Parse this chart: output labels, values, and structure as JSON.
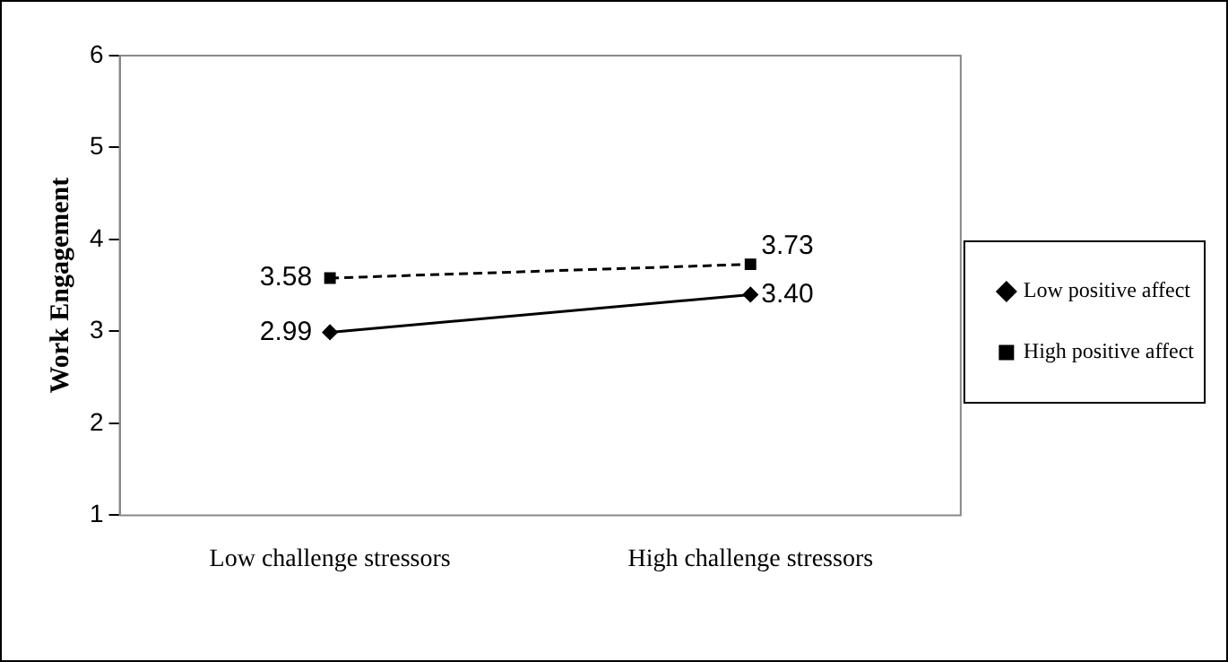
{
  "chart_data": {
    "type": "line",
    "ylabel": "Work Engagement",
    "categories": [
      "Low challenge stressors",
      "High challenge stressors"
    ],
    "series": [
      {
        "name": "Low positive affect",
        "color": "#000000",
        "values": [
          2.99,
          3.4
        ],
        "value_labels": [
          "2.99",
          "3.40"
        ],
        "marker": "diamond",
        "line_style": "solid"
      },
      {
        "name": "High positive affect",
        "color": "#000000",
        "values": [
          3.58,
          3.73
        ],
        "value_labels": [
          "3.58",
          "3.73"
        ],
        "marker": "square",
        "line_style": "dashed"
      }
    ],
    "ylim": [
      1,
      6
    ],
    "yticks": [
      1,
      2,
      3,
      4,
      5,
      6
    ],
    "grid": false,
    "legend": "right"
  }
}
